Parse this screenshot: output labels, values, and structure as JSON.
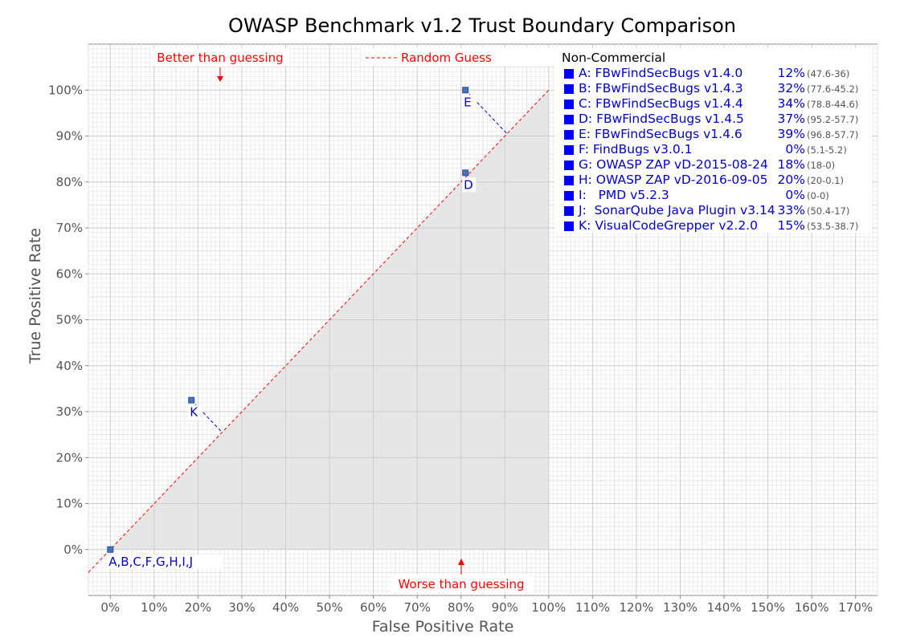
{
  "chart_data": {
    "type": "scatter",
    "title": "OWASP Benchmark v1.2 Trust Boundary Comparison",
    "xlabel": "False Positive Rate",
    "ylabel": "True Positive Rate",
    "x_ticks": [
      "0%",
      "10%",
      "20%",
      "30%",
      "40%",
      "50%",
      "60%",
      "70%",
      "80%",
      "90%",
      "100%",
      "110%",
      "120%",
      "130%",
      "140%",
      "150%",
      "160%",
      "170%"
    ],
    "y_ticks": [
      "0%",
      "10%",
      "20%",
      "30%",
      "40%",
      "50%",
      "60%",
      "70%",
      "80%",
      "90%",
      "100%"
    ],
    "xlim": [
      -5,
      175
    ],
    "ylim": [
      -10,
      110
    ],
    "grid": true,
    "annotations": {
      "better": "Better than guessing",
      "worse": "Worse than guessing",
      "random": "Random Guess"
    },
    "points": [
      {
        "label": "A,B,C,F,G,H,I,J",
        "x": 0,
        "y": 0
      },
      {
        "label": "K",
        "x": 18.5,
        "y": 32.5
      },
      {
        "label": "D",
        "x": 81,
        "y": 82
      },
      {
        "label": "E",
        "x": 81,
        "y": 100
      }
    ],
    "legend": {
      "heading": "Non-Commercial",
      "placement": "top-right",
      "entries": [
        {
          "label": "A: FBwFindSecBugs v1.4.0",
          "score": "12%",
          "range": "(47.6-36)"
        },
        {
          "label": "B: FBwFindSecBugs v1.4.3",
          "score": "32%",
          "range": "(77.6-45.2)"
        },
        {
          "label": "C: FBwFindSecBugs v1.4.4",
          "score": "34%",
          "range": "(78.8-44.6)"
        },
        {
          "label": "D: FBwFindSecBugs v1.4.5",
          "score": "37%",
          "range": "(95.2-57.7)"
        },
        {
          "label": "E: FBwFindSecBugs v1.4.6",
          "score": "39%",
          "range": "(96.8-57.7)"
        },
        {
          "label": "F: FindBugs v3.0.1",
          "score": "0%",
          "range": "(5.1-5.2)"
        },
        {
          "label": "G: OWASP ZAP vD-2015-08-24",
          "score": "18%",
          "range": "(18-0)"
        },
        {
          "label": "H: OWASP ZAP vD-2016-09-05",
          "score": "20%",
          "range": "(20-0.1)"
        },
        {
          "label": "I:   PMD v5.2.3",
          "score": "0%",
          "range": "(0-0)"
        },
        {
          "label": "J:  SonarQube Java Plugin v3.14",
          "score": "33%",
          "range": "(50.4-17)"
        },
        {
          "label": "K: VisualCodeGrepper v2.2.0",
          "score": "15%",
          "range": "(53.5-38.7)"
        }
      ]
    },
    "colors": {
      "point": "#4472c4",
      "label": "#0000cc",
      "random_line": "#ff0000",
      "annotation": "#ff0000",
      "shade": "#e6e6e6",
      "legend_square": "#0000ff"
    }
  }
}
